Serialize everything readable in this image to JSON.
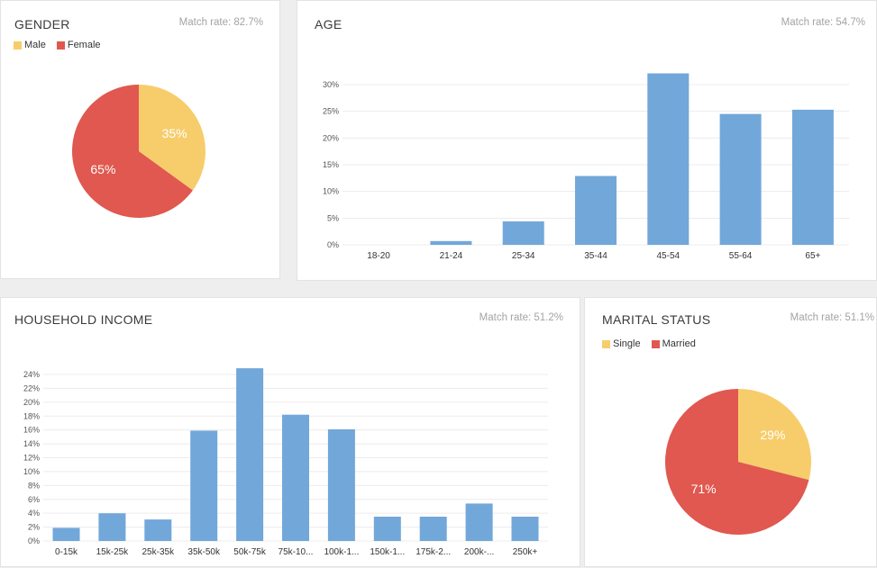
{
  "panels": {
    "gender": {
      "title": "GENDER",
      "match_rate": "Match rate: 82.7%"
    },
    "age": {
      "title": "AGE",
      "match_rate": "Match rate: 54.7%"
    },
    "income": {
      "title": "HOUSEHOLD INCOME",
      "match_rate": "Match rate: 51.2%"
    },
    "marital": {
      "title": "MARITAL STATUS",
      "match_rate": "Match rate: 51.1%"
    }
  },
  "colors": {
    "yellow": "#f7cd6c",
    "red": "#e0584f",
    "blue": "#72a7d9",
    "grid": "#ececec"
  },
  "chart_data": [
    {
      "id": "gender",
      "type": "pie",
      "title": "GENDER",
      "slices": [
        {
          "label": "Male",
          "value": 35,
          "display": "35%",
          "color": "#f7cd6c"
        },
        {
          "label": "Female",
          "value": 65,
          "display": "65%",
          "color": "#e0584f"
        }
      ],
      "legend": "top-left"
    },
    {
      "id": "age",
      "type": "bar",
      "title": "AGE",
      "categories": [
        "18-20",
        "21-24",
        "25-34",
        "35-44",
        "45-54",
        "55-64",
        "65+"
      ],
      "values": [
        0,
        0.7,
        4.4,
        12.9,
        32.1,
        24.5,
        25.3
      ],
      "ylim": [
        0,
        30
      ],
      "yticks": [
        "0%",
        "5%",
        "10%",
        "15%",
        "20%",
        "25%",
        "30%"
      ],
      "grid": true
    },
    {
      "id": "income",
      "type": "bar",
      "title": "HOUSEHOLD INCOME",
      "categories": [
        "0-15k",
        "15k-25k",
        "25k-35k",
        "35k-50k",
        "50k-75k",
        "75k-10...",
        "100k-1...",
        "150k-1...",
        "175k-2...",
        "200k-...",
        "250k+"
      ],
      "values": [
        1.9,
        4.0,
        3.1,
        15.9,
        24.9,
        18.2,
        16.1,
        3.5,
        3.5,
        5.4,
        3.5
      ],
      "ylim": [
        0,
        24
      ],
      "yticks": [
        "0%",
        "2%",
        "4%",
        "6%",
        "8%",
        "10%",
        "12%",
        "14%",
        "16%",
        "18%",
        "20%",
        "22%",
        "24%"
      ],
      "grid": true
    },
    {
      "id": "marital",
      "type": "pie",
      "title": "MARITAL STATUS",
      "slices": [
        {
          "label": "Single",
          "value": 29,
          "display": "29%",
          "color": "#f7cd6c"
        },
        {
          "label": "Married",
          "value": 71,
          "display": "71%",
          "color": "#e0584f"
        }
      ],
      "legend": "top-left"
    }
  ]
}
